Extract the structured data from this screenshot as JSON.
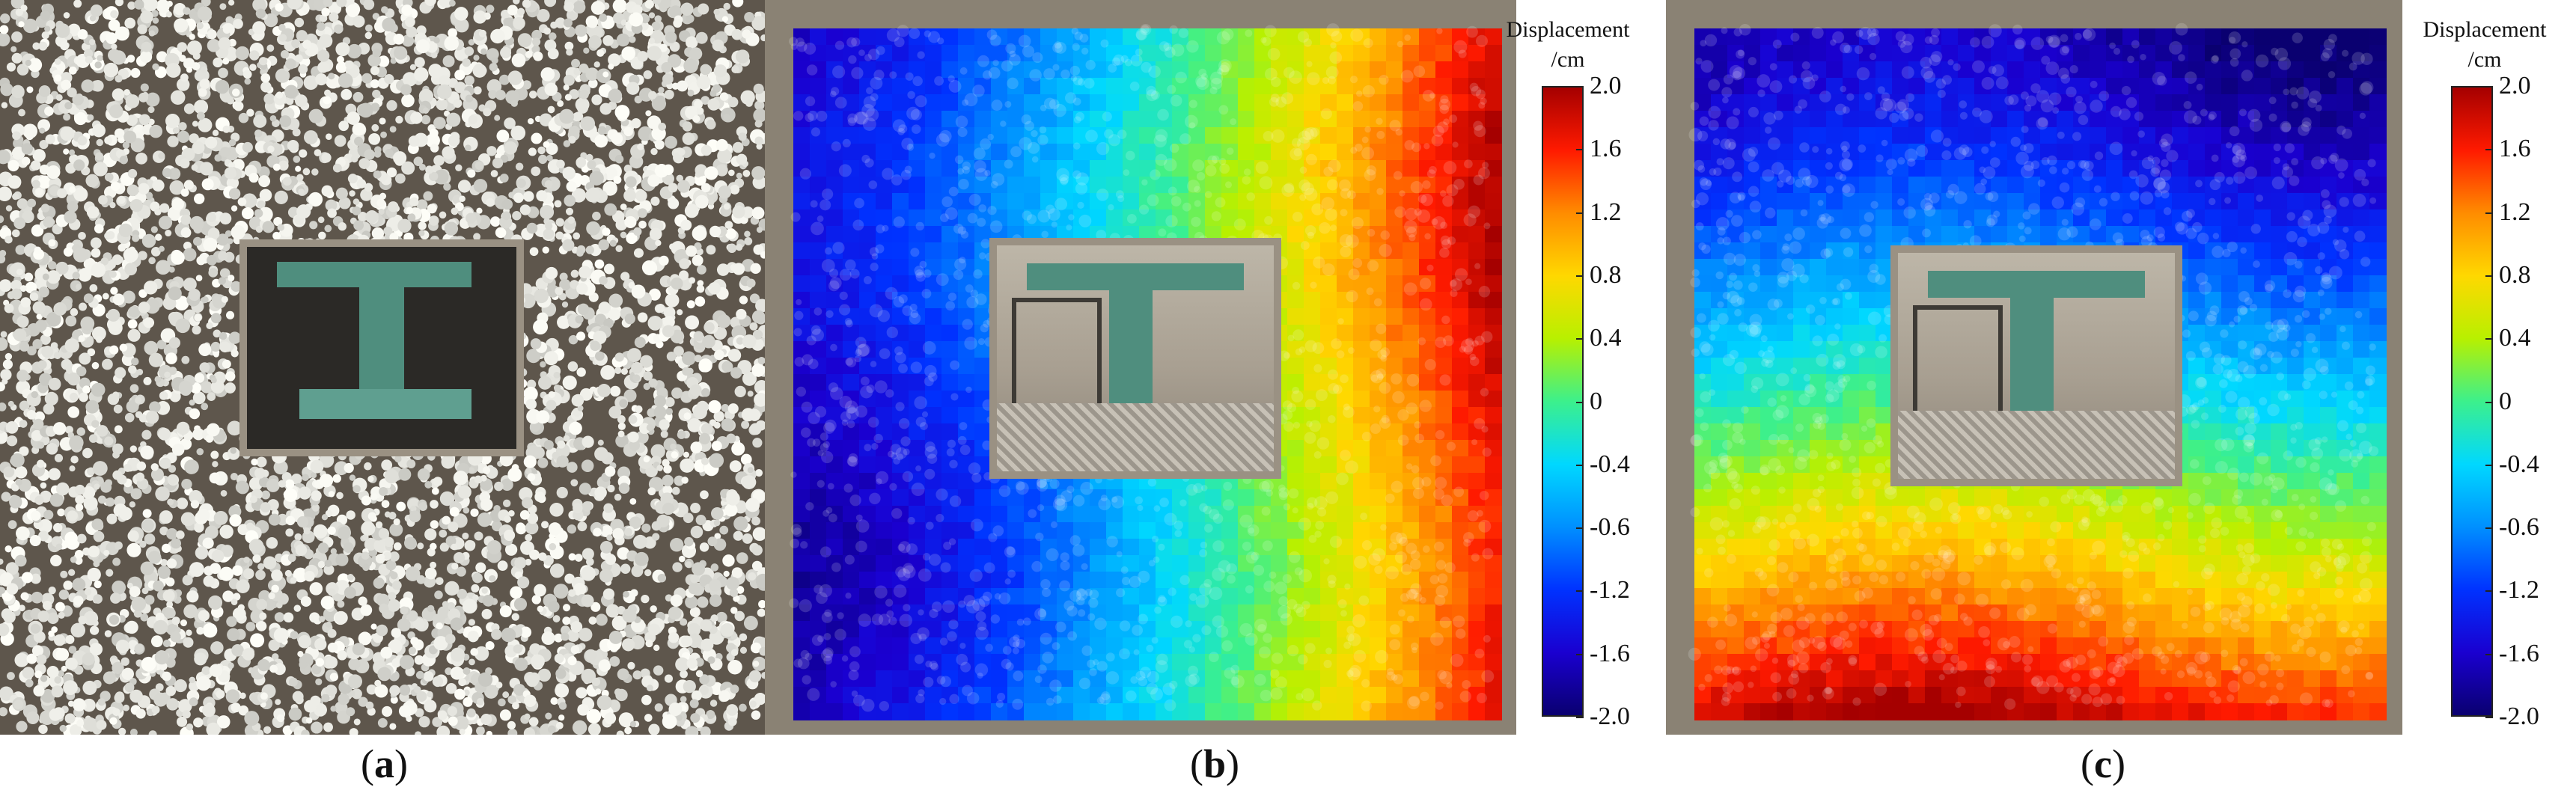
{
  "panels": [
    {
      "id": "a",
      "caption": "a"
    },
    {
      "id": "b",
      "caption": "b"
    },
    {
      "id": "c",
      "caption": "c"
    }
  ],
  "colorbar": {
    "title_line1": "Displacement",
    "title_line2": "/cm",
    "ticks": [
      "2.0",
      "1.6",
      "1.2",
      "0.8",
      "0.4",
      "0",
      "-0.4",
      "-0.6",
      "-1.2",
      "-1.6",
      "-2.0"
    ],
    "colors": [
      "#a50000",
      "#ff1a00",
      "#ff8c00",
      "#ffd800",
      "#b8f000",
      "#3cf08c",
      "#00d8ff",
      "#0090ff",
      "#0032ff",
      "#1a00d0",
      "#0a0070"
    ]
  }
}
